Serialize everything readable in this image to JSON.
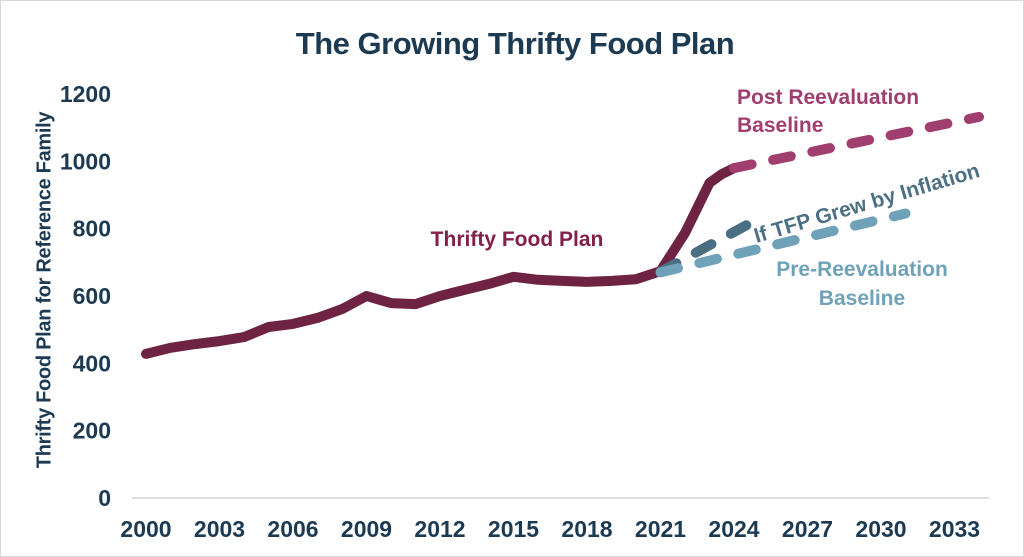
{
  "frame": {
    "background": "#ffffff",
    "border_color": "#d6d9db"
  },
  "colors": {
    "title_text": "#1c3a52",
    "axis_text": "#1c3a52",
    "axis_line": "#d9d9d9",
    "tfp_line": "#6e2342",
    "tfp_label": "#82204a",
    "post_reval": "#a03e6f",
    "inflation": "#4d7184",
    "pre_reval": "#6fa2b8"
  },
  "chart_data": {
    "type": "line",
    "title": "The Growing Thrifty Food Plan",
    "xlabel": "",
    "ylabel": "Thrifty Food Plan for Reference Family",
    "xlim": [
      2000,
      2034
    ],
    "ylim": [
      0,
      1200
    ],
    "x_ticks": [
      2000,
      2003,
      2006,
      2009,
      2012,
      2015,
      2018,
      2021,
      2024,
      2027,
      2030,
      2033
    ],
    "y_ticks": [
      0,
      200,
      400,
      600,
      800,
      1000,
      1200
    ],
    "grid": false,
    "legend_position": "inline-annotations",
    "series": [
      {
        "name": "Thrifty Food Plan",
        "style": "solid",
        "color": "#6e2342",
        "points": [
          [
            2000,
            428
          ],
          [
            2001,
            446
          ],
          [
            2002,
            457
          ],
          [
            2003,
            466
          ],
          [
            2004,
            478
          ],
          [
            2005,
            508
          ],
          [
            2006,
            517
          ],
          [
            2007,
            535
          ],
          [
            2008,
            561
          ],
          [
            2009,
            600
          ],
          [
            2010,
            579
          ],
          [
            2011,
            576
          ],
          [
            2012,
            600
          ],
          [
            2013,
            618
          ],
          [
            2014,
            636
          ],
          [
            2015,
            657
          ],
          [
            2016,
            648
          ],
          [
            2017,
            645
          ],
          [
            2018,
            642
          ],
          [
            2019,
            645
          ],
          [
            2020,
            650
          ],
          [
            2021,
            674
          ],
          [
            2022,
            787
          ],
          [
            2023,
            936
          ],
          [
            2023.5,
            962
          ],
          [
            2024,
            980
          ]
        ]
      },
      {
        "name": "Post Reevaluation Baseline",
        "style": "dashed",
        "color": "#a03e6f",
        "points": [
          [
            2024,
            980
          ],
          [
            2034,
            1132
          ]
        ]
      },
      {
        "name": "If TFP Grew by Inflation",
        "style": "dashed",
        "color": "#4a6e82",
        "points": [
          [
            2021,
            672
          ],
          [
            2024.5,
            810
          ]
        ]
      },
      {
        "name": "Pre-Reevaluation Baseline",
        "style": "dashed",
        "color": "#6fa2b8",
        "points": [
          [
            2021,
            670
          ],
          [
            2031,
            845
          ]
        ]
      }
    ],
    "annotations": {
      "thrifty": {
        "text": "Thrifty Food Plan"
      },
      "post": {
        "line1": "Post Reevaluation",
        "line2": "Baseline"
      },
      "inflation": {
        "text": "If TFP Grew by Inflation"
      },
      "pre": {
        "line1": "Pre-Reevaluation",
        "line2": "Baseline"
      }
    }
  }
}
